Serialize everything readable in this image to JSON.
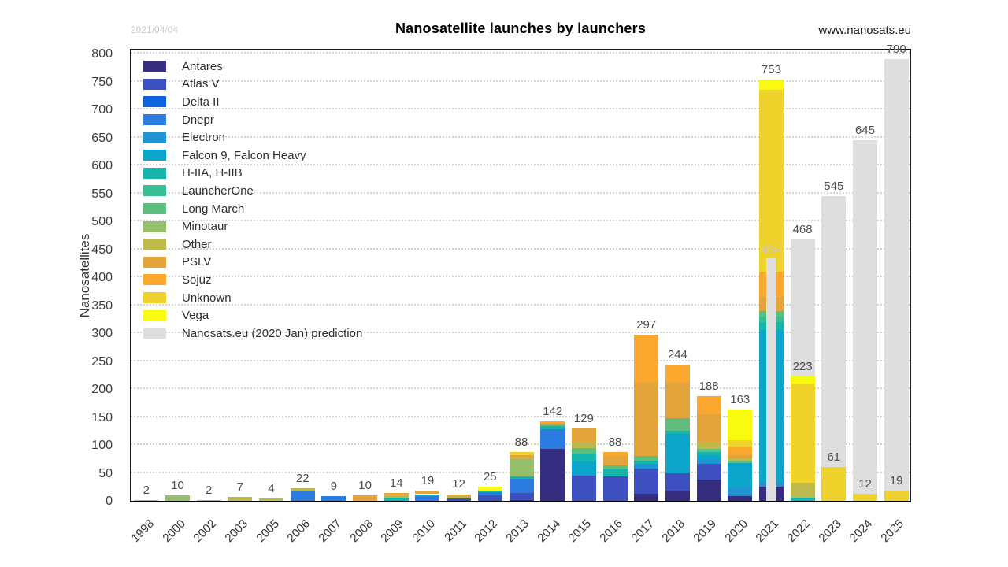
{
  "header": {
    "title": "Nanosatellite launches by launchers",
    "date_label": "2021/04/04",
    "watermark": "www.nanosats.eu"
  },
  "chart_data": {
    "type": "bar",
    "stacked": true,
    "title": "Nanosatellite launches by launchers",
    "xlabel": "",
    "ylabel": "Nanosatellites",
    "ylim": [
      0,
      800
    ],
    "ytick_step": 50,
    "grid": "horizontal-dotted",
    "legend_position": "top-left-inside",
    "label_colors": {
      "bar_total": "#4d4d4d",
      "prediction_inside": "#c4c4c4"
    },
    "launchers": [
      {
        "label": "Antares",
        "color": "#352d80"
      },
      {
        "label": "Atlas V",
        "color": "#3e4fc0"
      },
      {
        "label": "Delta II",
        "color": "#1063dc"
      },
      {
        "label": "Dnepr",
        "color": "#2a7ce0"
      },
      {
        "label": "Electron",
        "color": "#2094d2"
      },
      {
        "label": "Falcon 9, Falcon Heavy",
        "color": "#0ca6ca"
      },
      {
        "label": "H-IIA, H-IIB",
        "color": "#16b5ab"
      },
      {
        "label": "LauncherOne",
        "color": "#38bd95"
      },
      {
        "label": "Long March",
        "color": "#5ebe7e"
      },
      {
        "label": "Minotaur",
        "color": "#95bf6d"
      },
      {
        "label": "Other",
        "color": "#bdb94b"
      },
      {
        "label": "PSLV",
        "color": "#e2a43b"
      },
      {
        "label": "Sojuz",
        "color": "#fba92e"
      },
      {
        "label": "Unknown",
        "color": "#efd32a"
      },
      {
        "label": "Vega",
        "color": "#f8fa0f"
      },
      {
        "label": "Nanosats.eu (2020 Jan) prediction",
        "color": "#dedede"
      }
    ],
    "prediction_color": "#dedede",
    "years": [
      {
        "year": "1998",
        "total": 2,
        "segments": [
          [
            "Other",
            2
          ]
        ]
      },
      {
        "year": "2000",
        "total": 10,
        "segments": [
          [
            "Minotaur",
            10
          ]
        ]
      },
      {
        "year": "2002",
        "total": 2,
        "segments": [
          [
            "Other",
            2
          ]
        ]
      },
      {
        "year": "2003",
        "total": 7,
        "segments": [
          [
            "Other",
            7
          ]
        ]
      },
      {
        "year": "2005",
        "total": 4,
        "segments": [
          [
            "Other",
            4
          ]
        ]
      },
      {
        "year": "2006",
        "total": 22,
        "segments": [
          [
            "Dnepr",
            17
          ],
          [
            "Other",
            5
          ]
        ]
      },
      {
        "year": "2007",
        "total": 9,
        "segments": [
          [
            "Dnepr",
            9
          ]
        ]
      },
      {
        "year": "2008",
        "total": 10,
        "segments": [
          [
            "PSLV",
            10
          ]
        ]
      },
      {
        "year": "2009",
        "total": 14,
        "segments": [
          [
            "H-IIA, H-IIB",
            5
          ],
          [
            "Other",
            3
          ],
          [
            "PSLV",
            6
          ]
        ]
      },
      {
        "year": "2010",
        "total": 19,
        "segments": [
          [
            "Dnepr",
            8
          ],
          [
            "H-IIA, H-IIB",
            4
          ],
          [
            "PSLV",
            7
          ]
        ]
      },
      {
        "year": "2011",
        "total": 12,
        "segments": [
          [
            "Atlas V",
            4
          ],
          [
            "Other",
            4
          ],
          [
            "PSLV",
            4
          ]
        ]
      },
      {
        "year": "2012",
        "total": 25,
        "segments": [
          [
            "Atlas V",
            10
          ],
          [
            "Dnepr",
            5
          ],
          [
            "H-IIA, H-IIB",
            3
          ],
          [
            "Vega",
            7
          ]
        ]
      },
      {
        "year": "2013",
        "total": 88,
        "segments": [
          [
            "Antares",
            2
          ],
          [
            "Atlas V",
            12
          ],
          [
            "Dnepr",
            26
          ],
          [
            "H-IIA, H-IIB",
            4
          ],
          [
            "Minotaur",
            30
          ],
          [
            "Other",
            2
          ],
          [
            "PSLV",
            6
          ],
          [
            "Unknown",
            6
          ]
        ]
      },
      {
        "year": "2014",
        "total": 142,
        "segments": [
          [
            "Antares",
            93
          ],
          [
            "Dnepr",
            35
          ],
          [
            "H-IIA, H-IIB",
            6
          ],
          [
            "Long March",
            2
          ],
          [
            "PSLV",
            4
          ],
          [
            "Sojuz",
            2
          ]
        ]
      },
      {
        "year": "2015",
        "total": 129,
        "segments": [
          [
            "Atlas V",
            45
          ],
          [
            "Falcon 9, Falcon Heavy",
            25
          ],
          [
            "H-IIA, H-IIB",
            15
          ],
          [
            "Long March",
            9
          ],
          [
            "Other",
            12
          ],
          [
            "PSLV",
            23
          ]
        ]
      },
      {
        "year": "2016",
        "total": 88,
        "segments": [
          [
            "Atlas V",
            44
          ],
          [
            "H-IIA, H-IIB",
            12
          ],
          [
            "Long March",
            7
          ],
          [
            "PSLV",
            17
          ],
          [
            "Sojuz",
            8
          ]
        ]
      },
      {
        "year": "2017",
        "total": 297,
        "segments": [
          [
            "Antares",
            12
          ],
          [
            "Atlas V",
            46
          ],
          [
            "Electron",
            8
          ],
          [
            "H-IIA, H-IIB",
            6
          ],
          [
            "Long March",
            8
          ],
          [
            "PSLV",
            132
          ],
          [
            "Sojuz",
            85
          ]
        ]
      },
      {
        "year": "2018",
        "total": 244,
        "segments": [
          [
            "Antares",
            18
          ],
          [
            "Atlas V",
            32
          ],
          [
            "Falcon 9, Falcon Heavy",
            70
          ],
          [
            "H-IIA, H-IIB",
            5
          ],
          [
            "Long March",
            23
          ],
          [
            "PSLV",
            64
          ],
          [
            "Sojuz",
            32
          ]
        ]
      },
      {
        "year": "2019",
        "total": 188,
        "segments": [
          [
            "Antares",
            38
          ],
          [
            "Atlas V",
            28
          ],
          [
            "Electron",
            8
          ],
          [
            "Falcon 9, Falcon Heavy",
            8
          ],
          [
            "H-IIA, H-IIB",
            5
          ],
          [
            "Long March",
            6
          ],
          [
            "Other",
            12
          ],
          [
            "PSLV",
            50
          ],
          [
            "Sojuz",
            33
          ]
        ]
      },
      {
        "year": "2020",
        "total": 163,
        "segments": [
          [
            "Antares",
            8
          ],
          [
            "Electron",
            14
          ],
          [
            "Falcon 9, Falcon Heavy",
            46
          ],
          [
            "Long March",
            4
          ],
          [
            "Other",
            4
          ],
          [
            "PSLV",
            6
          ],
          [
            "Sojuz",
            15
          ],
          [
            "Unknown",
            12
          ],
          [
            "Vega",
            54
          ]
        ]
      },
      {
        "year": "2021",
        "total": 753,
        "prediction": 434,
        "segments": [
          [
            "Antares",
            25
          ],
          [
            "Electron",
            10
          ],
          [
            "Falcon 9, Falcon Heavy",
            270
          ],
          [
            "H-IIA, H-IIB",
            15
          ],
          [
            "LauncherOne",
            10
          ],
          [
            "Long March",
            10
          ],
          [
            "PSLV",
            25
          ],
          [
            "Sojuz",
            45
          ],
          [
            "Unknown",
            325
          ],
          [
            "Vega",
            18
          ]
        ]
      },
      {
        "year": "2022",
        "total": 223,
        "prediction": 468,
        "segments": [
          [
            "H-IIA, H-IIB",
            5
          ],
          [
            "Other",
            28
          ],
          [
            "Unknown",
            177
          ],
          [
            "Vega",
            13
          ]
        ]
      },
      {
        "year": "2023",
        "total": 61,
        "prediction": 545,
        "segments": [
          [
            "Unknown",
            61
          ]
        ]
      },
      {
        "year": "2024",
        "total": 12,
        "prediction": 645,
        "segments": [
          [
            "Unknown",
            12
          ]
        ]
      },
      {
        "year": "2025",
        "total": 19,
        "prediction": 790,
        "segments": [
          [
            "Unknown",
            19
          ]
        ]
      }
    ]
  }
}
